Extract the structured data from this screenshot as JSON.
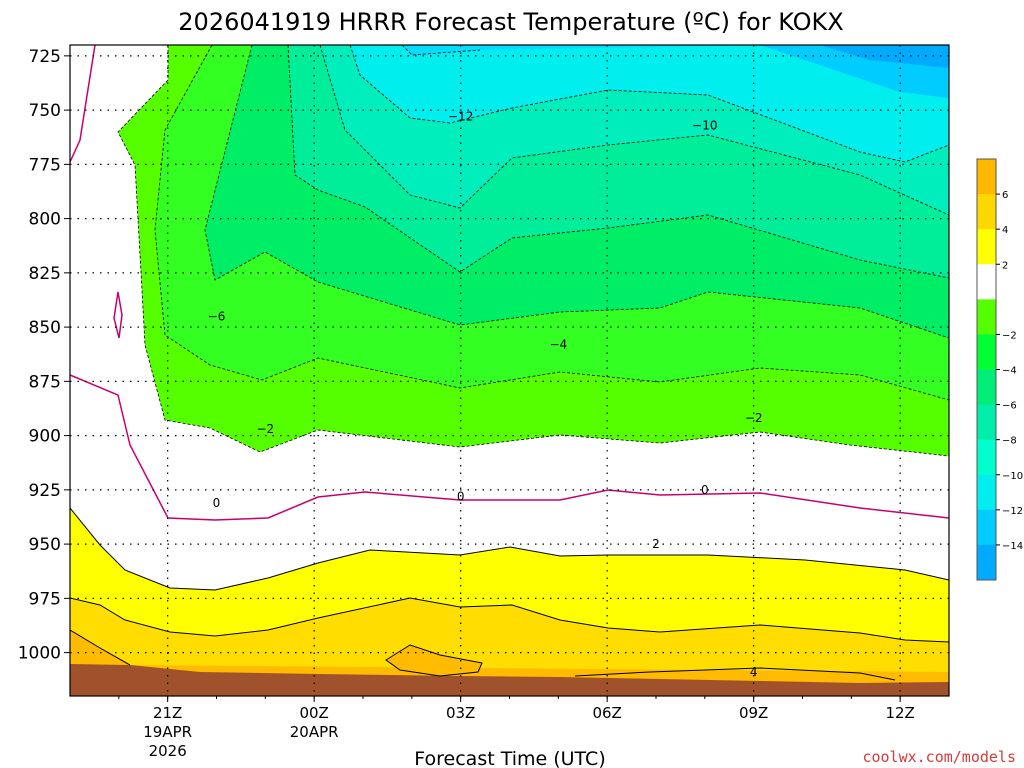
{
  "chart_data": {
    "type": "contour",
    "title": "2026041919 HRRR Forecast Temperature (ºC) for KOKX",
    "xlabel": "Forecast Time (UTC)",
    "ylabel": "",
    "x_ticks": [
      {
        "label": "21Z",
        "sub1": "19APR",
        "sub2": "2026",
        "hour": 2
      },
      {
        "label": "00Z",
        "sub1": "20APR",
        "sub2": "",
        "hour": 5
      },
      {
        "label": "03Z",
        "sub1": "",
        "sub2": "",
        "hour": 8
      },
      {
        "label": "06Z",
        "sub1": "",
        "sub2": "",
        "hour": 11
      },
      {
        "label": "09Z",
        "sub1": "",
        "sub2": "",
        "hour": 14
      },
      {
        "label": "12Z",
        "sub1": "",
        "sub2": "",
        "hour": 17
      }
    ],
    "x_range_hours": [
      0,
      18
    ],
    "y_ticks": [
      "725",
      "750",
      "775",
      "800",
      "825",
      "850",
      "875",
      "900",
      "925",
      "950",
      "975",
      "1000"
    ],
    "y_range_hPa": [
      720,
      1020
    ],
    "y_scale": "pressure (inverted)",
    "grid": true,
    "contour_labels": [
      {
        "text": "−12",
        "hour": 8.0,
        "p": 753
      },
      {
        "text": "−10",
        "hour": 13.0,
        "p": 757
      },
      {
        "text": "−6",
        "hour": 3.0,
        "p": 845
      },
      {
        "text": "−4",
        "hour": 10.0,
        "p": 858
      },
      {
        "text": "−2",
        "hour": 4.0,
        "p": 897
      },
      {
        "text": "−2",
        "hour": 14.0,
        "p": 892
      },
      {
        "text": "0",
        "hour": 3.0,
        "p": 931
      },
      {
        "text": "0",
        "hour": 8.0,
        "p": 928
      },
      {
        "text": "0",
        "hour": 13.0,
        "p": 925
      },
      {
        "text": "2",
        "hour": 12.0,
        "p": 950
      },
      {
        "text": "4",
        "hour": 14.0,
        "p": 1009
      }
    ],
    "colorbar": {
      "levels": [
        "6",
        "4",
        "2",
        "−2",
        "−4",
        "−6",
        "−8",
        "−10",
        "−12",
        "−14"
      ],
      "colors": [
        "#ffb800",
        "#ffd700",
        "#ffff00",
        "#ffffff",
        "#55ff00",
        "#00ff33",
        "#00ee77",
        "#00eeaa",
        "#00ffcc",
        "#00eeee",
        "#00ccff",
        "#00aaff"
      ]
    },
    "colors": {
      "yellow": "#ffff00",
      "gold": "#ffdd00",
      "orange": "#ffbb00",
      "terrain": "#a0522d",
      "green1": "#55ff00",
      "green2": "#00ff33",
      "green3": "#00ee77",
      "teal1": "#00eeaa",
      "teal2": "#00ffcc",
      "cyan1": "#00eeee",
      "cyan2": "#00ccff",
      "blue1": "#00aaff",
      "zero_line": "#c8006e"
    }
  },
  "credit": "coolwx.com/models"
}
